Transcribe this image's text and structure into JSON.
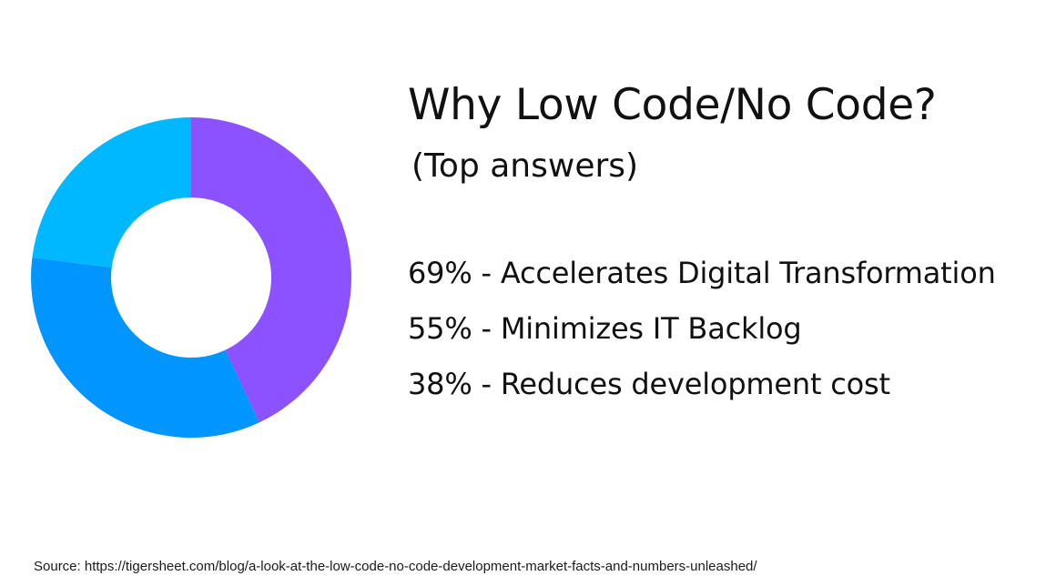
{
  "chart_data": {
    "type": "pie",
    "variant": "donut",
    "slices": [
      {
        "label": "",
        "value": 43,
        "color": "#8c52ff"
      },
      {
        "label": "",
        "value": 34,
        "color": "#0095ff"
      },
      {
        "label": "",
        "value": 23,
        "color": "#00b8ff"
      }
    ]
  },
  "heading": {
    "title": "Why Low Code/No Code?",
    "subtitle": "(Top answers)"
  },
  "answers": [
    "69% - Accelerates Digital Transformation",
    "55% - Minimizes IT Backlog",
    "38% - Reduces development cost"
  ],
  "source": "Source: https://tigersheet.com/blog/a-look-at-the-low-code-no-code-development-market-facts-and-numbers-unleashed/"
}
